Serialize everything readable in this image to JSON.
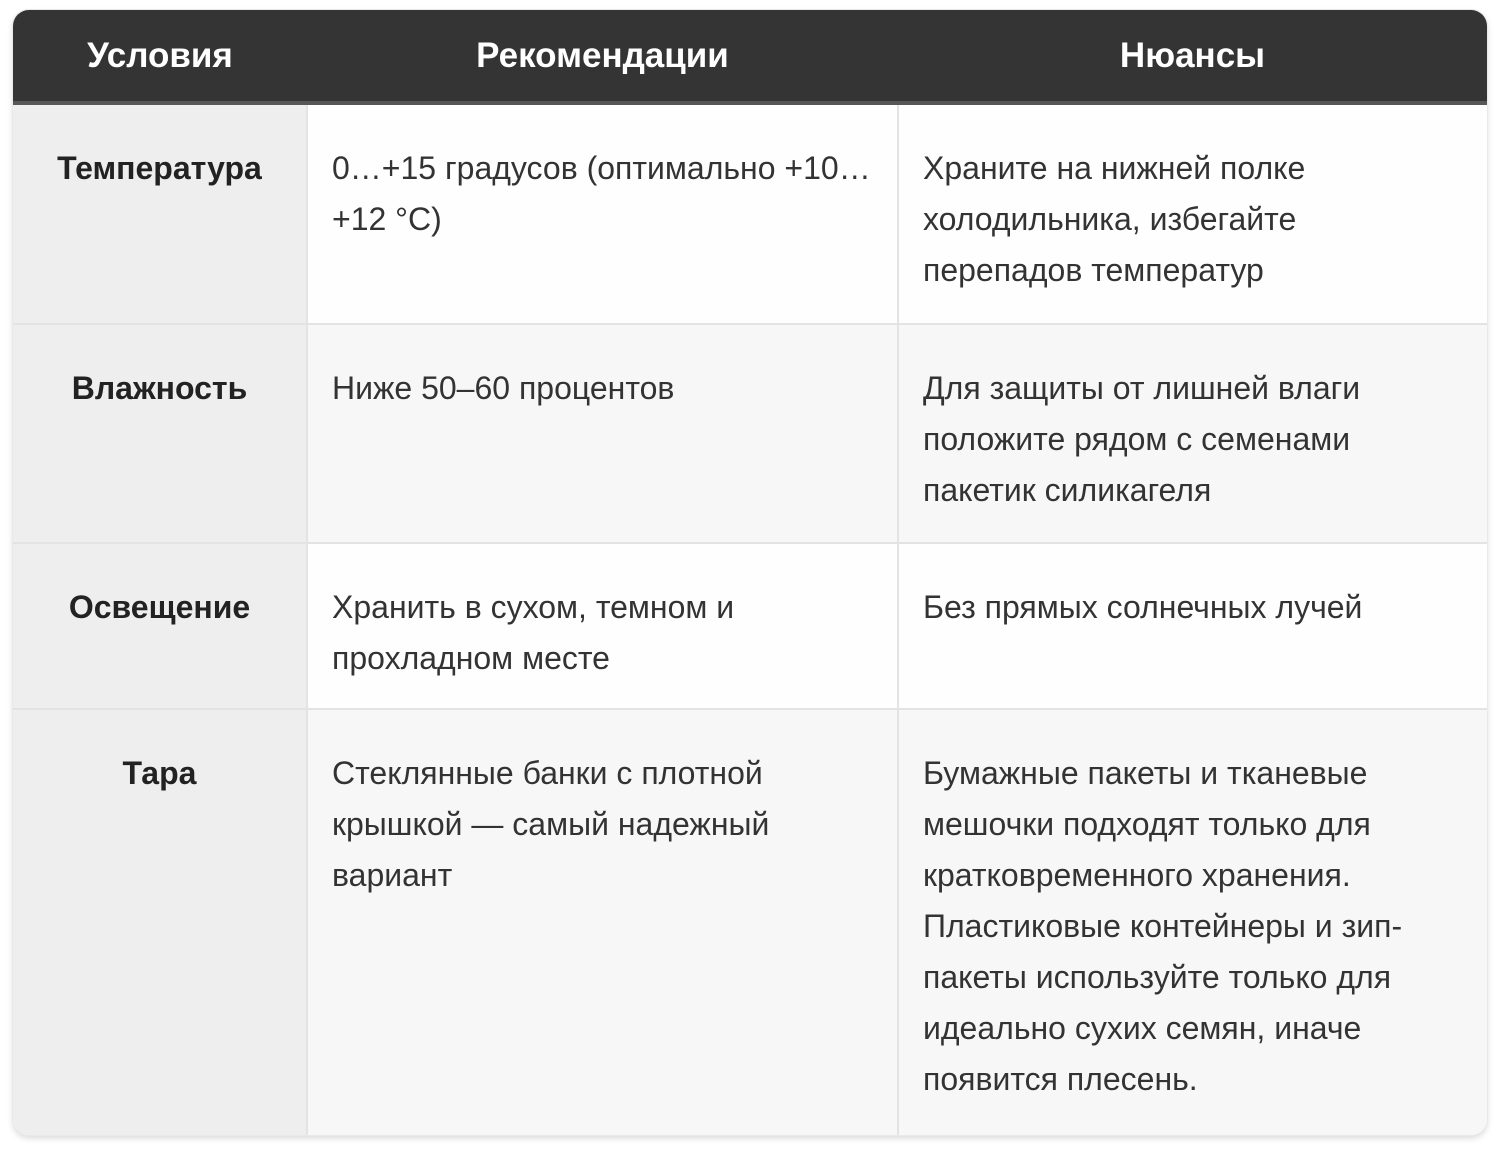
{
  "table": {
    "columns": [
      {
        "label": "Условия"
      },
      {
        "label": "Рекомендации"
      },
      {
        "label": "Нюансы"
      }
    ],
    "rows": [
      {
        "condition": "Температура",
        "recommendation": "0…+15 градусов (оптимально +10…+12 °C)",
        "nuance": "Храните на нижней полке холодильника, избегайте перепадов температур"
      },
      {
        "condition": "Влажность",
        "recommendation": "Ниже 50–60 процентов",
        "nuance": "Для защиты от лишней влаги положите рядом с семенами пакетик силикагеля"
      },
      {
        "condition": "Освещение",
        "recommendation": "Хранить в сухом, темном и прохладном месте",
        "nuance": "Без прямых солнечных лучей"
      },
      {
        "condition": "Тара",
        "recommendation": "Стеклянные банки с плотной крышкой — самый надежный вариант",
        "nuance": "Бумажные пакеты и тканевые мешочки подходят только для кратковременного хранения. Пластиковые контейнеры и зип-пакеты используйте только для идеально сухих семян, иначе появится плесень."
      }
    ],
    "colors": {
      "header_bg": "#343434",
      "header_text": "#ffffff",
      "header_divider": "#575757",
      "label_col_bg": "#eeeeee",
      "row_bg": "#fefefe",
      "row_alt_bg": "#f7f7f7",
      "border": "#e3e3e3",
      "text": "#333333",
      "label_text": "#222222",
      "page_bg": "#ffffff"
    }
  }
}
